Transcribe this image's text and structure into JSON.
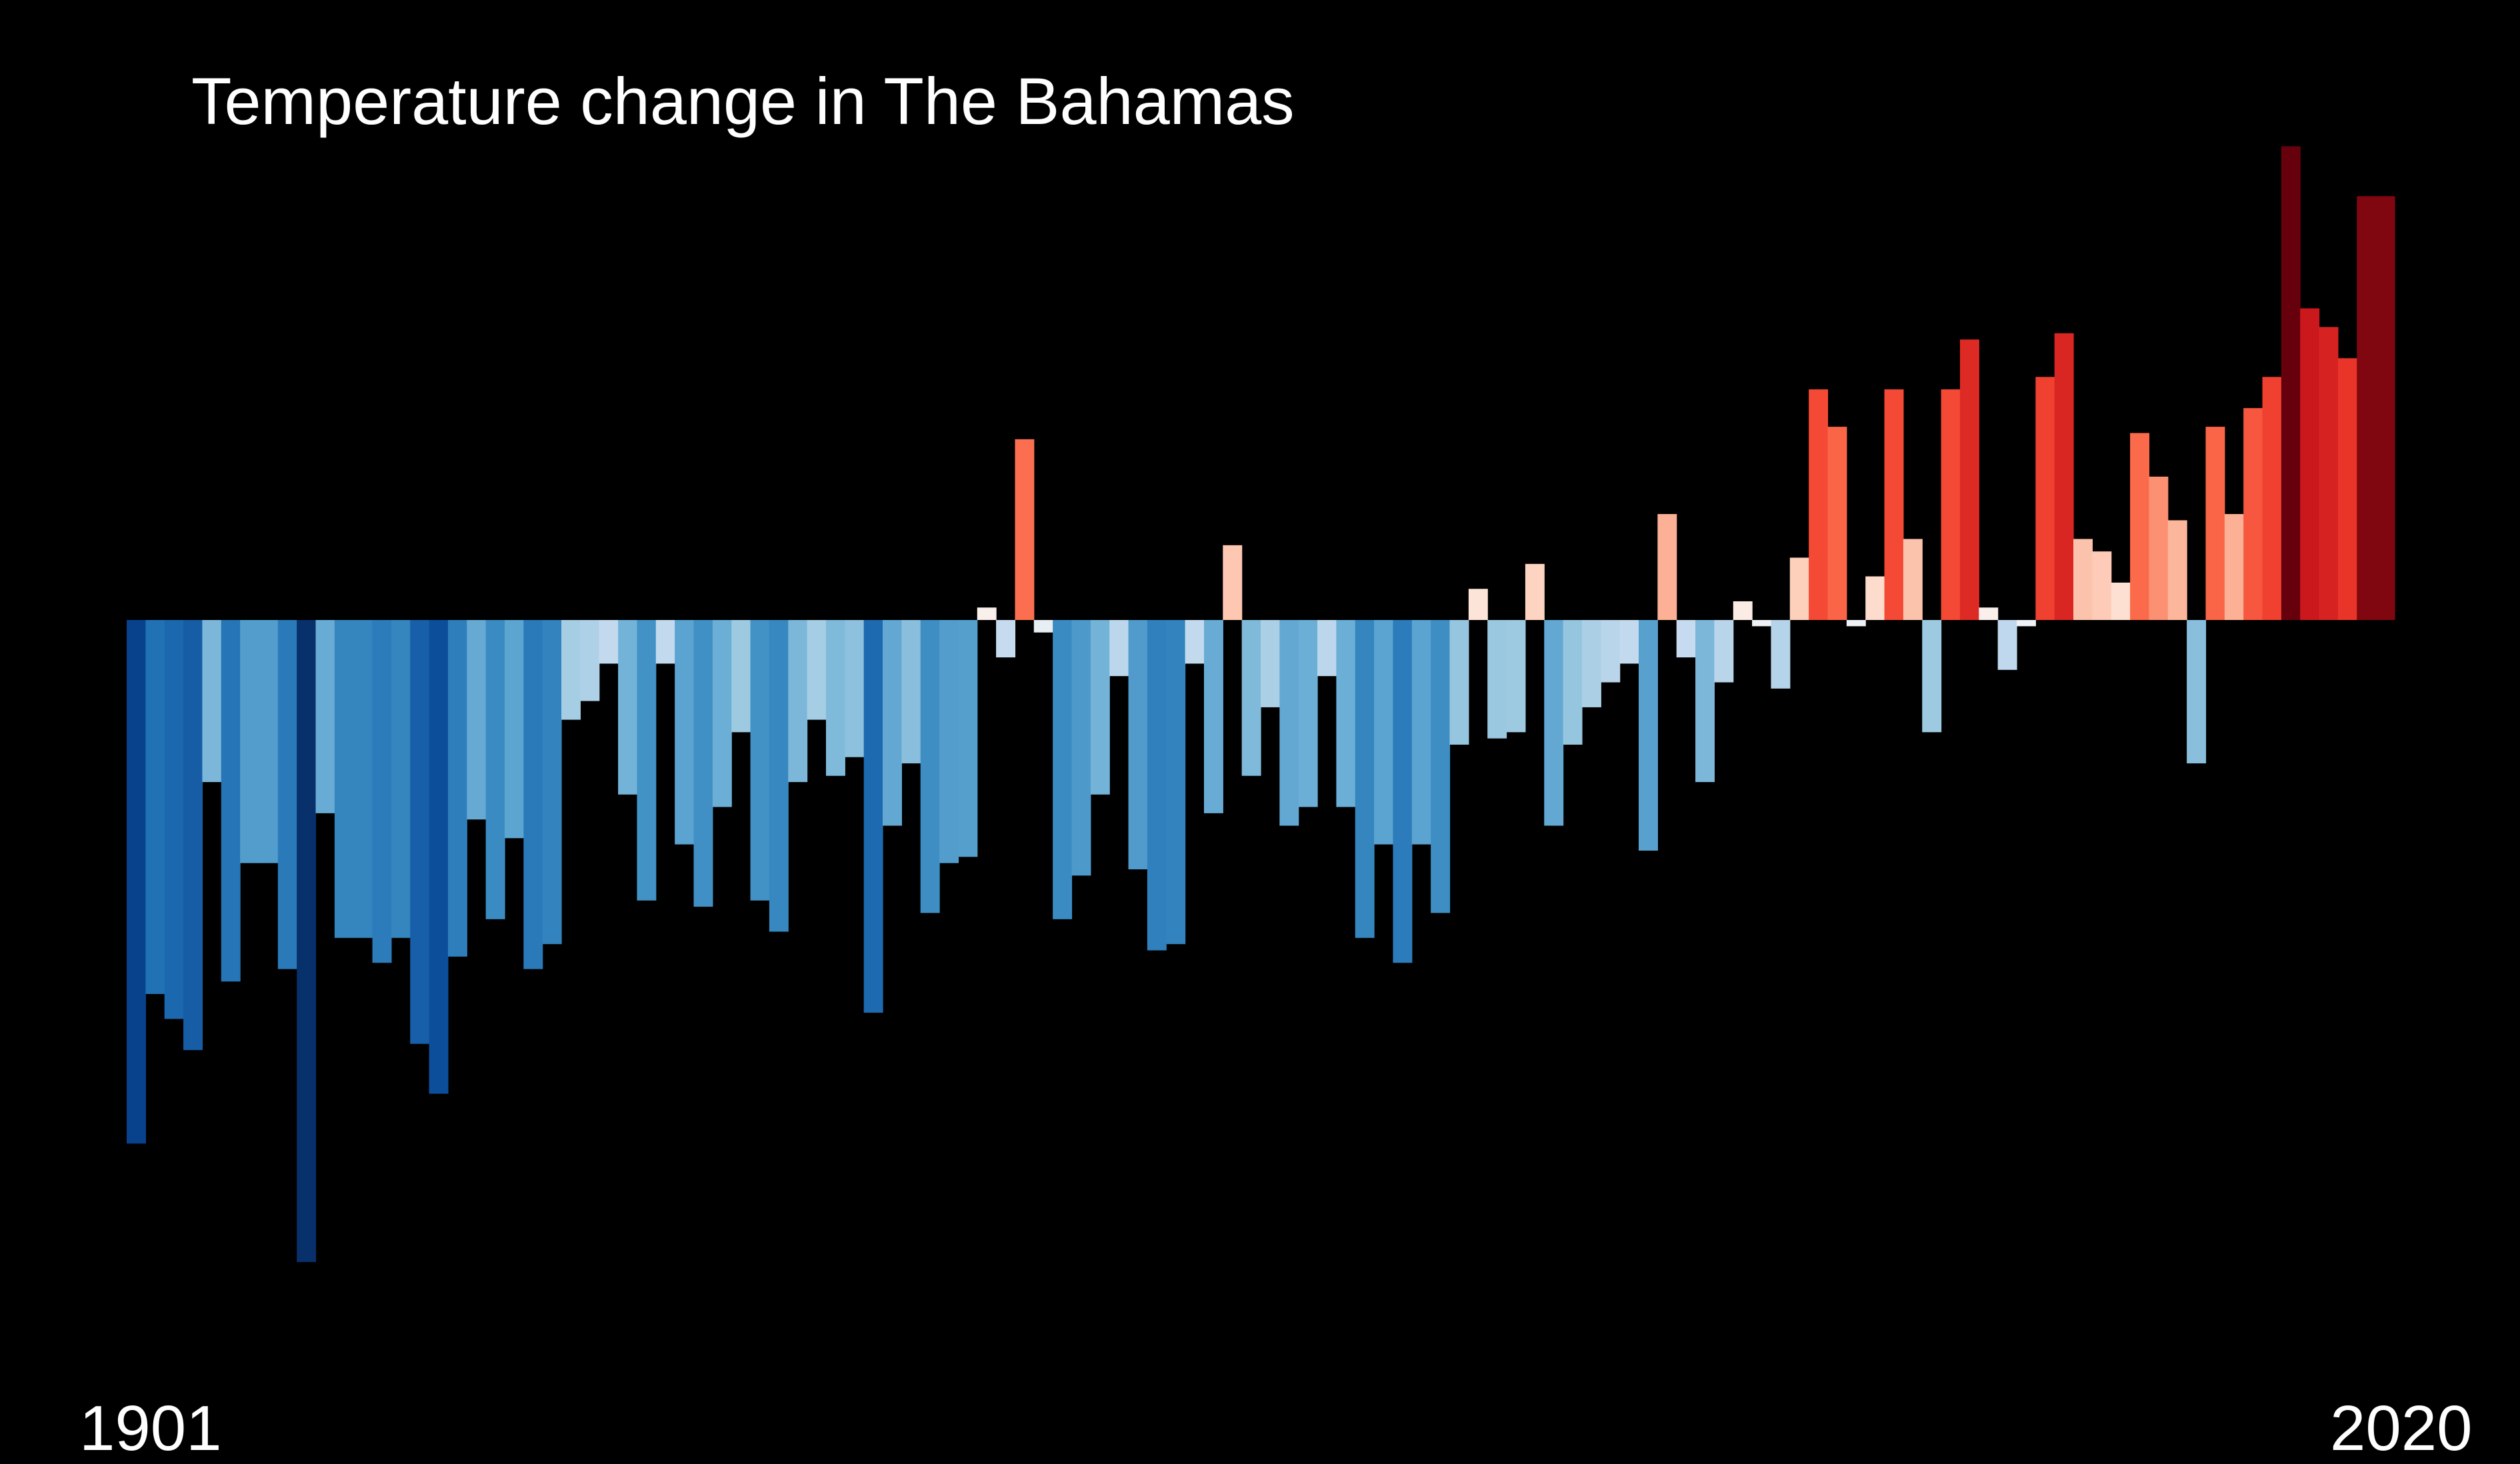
{
  "chart_data": {
    "type": "bar",
    "title": "Temperature change in The Bahamas",
    "start_label": "1901",
    "end_label": "2020",
    "x_start": 1901,
    "x_end": 2020,
    "baseline": 0,
    "ylim": [
      -1.03,
      0.75
    ],
    "grid": false,
    "legend": "none",
    "color_scale": "blue (cooler) to red (warmer)",
    "colors": {
      "background": "#000000",
      "cold_extreme": "#08306b",
      "cold_mid": "#4292c6",
      "neutral": "#f7f7f7",
      "warm_mid": "#fb6a4a",
      "warm_extreme": "#67000d"
    },
    "years": [
      1901,
      1902,
      1903,
      1904,
      1905,
      1906,
      1907,
      1908,
      1909,
      1910,
      1911,
      1912,
      1913,
      1914,
      1915,
      1916,
      1917,
      1918,
      1919,
      1920,
      1921,
      1922,
      1923,
      1924,
      1925,
      1926,
      1927,
      1928,
      1929,
      1930,
      1931,
      1932,
      1933,
      1934,
      1935,
      1936,
      1937,
      1938,
      1939,
      1940,
      1941,
      1942,
      1943,
      1944,
      1945,
      1946,
      1947,
      1948,
      1949,
      1950,
      1951,
      1952,
      1953,
      1954,
      1955,
      1956,
      1957,
      1958,
      1959,
      1960,
      1961,
      1962,
      1963,
      1964,
      1965,
      1966,
      1967,
      1968,
      1969,
      1970,
      1971,
      1972,
      1973,
      1974,
      1975,
      1976,
      1977,
      1978,
      1979,
      1980,
      1981,
      1982,
      1983,
      1984,
      1985,
      1986,
      1987,
      1988,
      1989,
      1990,
      1991,
      1992,
      1993,
      1994,
      1995,
      1996,
      1997,
      1998,
      1999,
      2000,
      2001,
      2002,
      2003,
      2004,
      2005,
      2006,
      2007,
      2008,
      2009,
      2010,
      2011,
      2012,
      2013,
      2014,
      2015,
      2016,
      2017,
      2018,
      2019,
      2020
    ],
    "values": [
      -0.84,
      -0.6,
      -0.64,
      -0.69,
      -0.26,
      -0.58,
      -0.39,
      -0.39,
      -0.56,
      -1.03,
      -0.31,
      -0.51,
      -0.51,
      -0.55,
      -0.51,
      -0.68,
      -0.76,
      -0.54,
      -0.32,
      -0.48,
      -0.35,
      -0.56,
      -0.52,
      -0.16,
      -0.13,
      -0.07,
      -0.28,
      -0.45,
      -0.07,
      -0.36,
      -0.46,
      -0.3,
      -0.18,
      -0.45,
      -0.5,
      -0.26,
      -0.16,
      -0.25,
      -0.22,
      -0.63,
      -0.33,
      -0.23,
      -0.47,
      -0.39,
      -0.38,
      0.02,
      -0.06,
      0.29,
      -0.02,
      -0.48,
      -0.41,
      -0.28,
      -0.09,
      -0.4,
      -0.53,
      -0.52,
      -0.07,
      -0.31,
      0.12,
      -0.25,
      -0.14,
      -0.33,
      -0.3,
      -0.09,
      -0.3,
      -0.51,
      -0.36,
      -0.55,
      -0.36,
      -0.47,
      -0.2,
      0.05,
      -0.19,
      -0.18,
      0.09,
      -0.33,
      -0.2,
      -0.14,
      -0.1,
      -0.07,
      -0.37,
      0.17,
      -0.06,
      -0.26,
      -0.1,
      0.03,
      -0.01,
      -0.11,
      0.1,
      0.37,
      0.31,
      -0.01,
      0.07,
      0.37,
      0.13,
      -0.18,
      0.37,
      0.45,
      0.02,
      -0.08,
      -0.01,
      0.39,
      0.46,
      0.13,
      0.11,
      0.06,
      0.3,
      0.23,
      0.16,
      -0.23,
      0.31,
      0.17,
      0.34,
      0.39,
      0.76,
      0.5,
      0.47,
      0.42,
      0.68,
      0.68
    ]
  }
}
